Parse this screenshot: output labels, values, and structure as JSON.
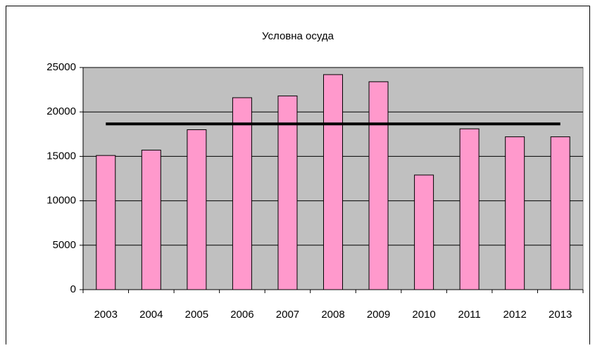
{
  "chart_data": {
    "type": "bar",
    "title": "Условна осуда",
    "categories": [
      "2003",
      "2004",
      "2005",
      "2006",
      "2007",
      "2008",
      "2009",
      "2010",
      "2011",
      "2012",
      "2013"
    ],
    "series": [
      {
        "type": "bar",
        "color": "#ff99cc",
        "values": [
          15100,
          15700,
          18000,
          21600,
          21800,
          24200,
          23400,
          12900,
          18100,
          17200,
          17200
        ]
      },
      {
        "type": "line",
        "color": "#000000",
        "values": [
          18650,
          18650,
          18650,
          18650,
          18650,
          18650,
          18650,
          18650,
          18650,
          18650,
          18650
        ]
      }
    ],
    "ylim": [
      0,
      25000
    ],
    "yticks": [
      0,
      5000,
      10000,
      15000,
      20000,
      25000
    ],
    "grid": true,
    "plot_background": "#c0c0c0"
  }
}
